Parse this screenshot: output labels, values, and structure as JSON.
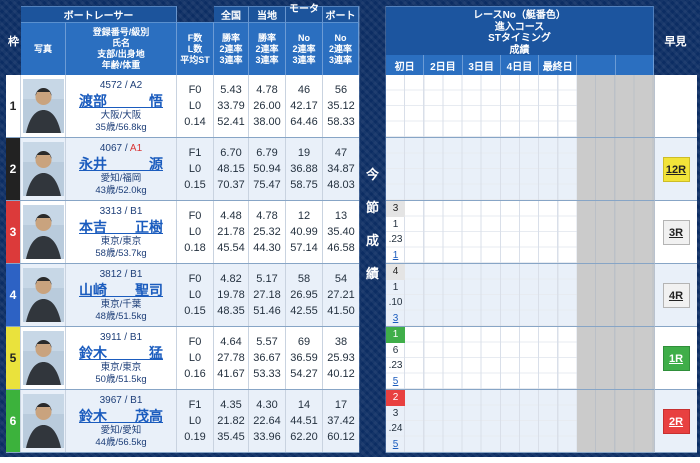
{
  "header": {
    "waku": "枠",
    "boat_racer": "ボートレーサー",
    "photo": "写真",
    "profile_lines": [
      "登録番号/級別",
      "氏名",
      "支部/出身地",
      "年齢/体重"
    ],
    "fl_lines": [
      "F数",
      "L数",
      "平均ST"
    ],
    "stat_groups": [
      "全国",
      "当地",
      "モーター",
      "ボート"
    ],
    "rate_lines": [
      "勝率",
      "2連率",
      "3連率"
    ],
    "no_lines": [
      "No",
      "2連率",
      "3連率"
    ],
    "right_title_lines": [
      "レースNo（艇番色）",
      "進入コース",
      "STタイミング",
      "成績"
    ],
    "days": [
      "初日",
      "2日目",
      "3日目",
      "4日目",
      "最終日",
      "",
      ""
    ],
    "hayami": "早見",
    "vertical_label": [
      "今",
      "節",
      "成",
      "績"
    ]
  },
  "colors": {
    "frame_navy": "#0c2d63",
    "header_dark_blue": "#1c549c",
    "header_light_blue": "#2b6fc0",
    "row_alt": "#e9f0f9",
    "link_blue": "#1b5cbe"
  },
  "racers": [
    {
      "waku": "1",
      "waku_bg": "#ffffff",
      "waku_fg": "#222222",
      "reg": "4572",
      "class": "A2",
      "class_color": "#1d3e78",
      "name": "渡部　　　悟",
      "branch": "大阪/大阪",
      "age_weight": "35歳/56.8kg",
      "f": "F0",
      "l": "L0",
      "st": "0.14",
      "zenkoku": [
        "5.43",
        "33.79",
        "52.41"
      ],
      "touchi": [
        "4.78",
        "26.00",
        "38.00"
      ],
      "motor": [
        "46",
        "42.17",
        "64.46"
      ],
      "boat": [
        "56",
        "35.12",
        "58.33"
      ],
      "day1": null,
      "hayami": null
    },
    {
      "waku": "2",
      "waku_bg": "#222222",
      "waku_fg": "#ffffff",
      "reg": "4067",
      "class": "A1",
      "class_color": "#d93535",
      "name": "永井　　　源",
      "branch": "愛知/福岡",
      "age_weight": "43歳/52.0kg",
      "f": "F1",
      "l": "L0",
      "st": "0.15",
      "zenkoku": [
        "6.70",
        "48.15",
        "70.37"
      ],
      "touchi": [
        "6.79",
        "50.94",
        "75.47"
      ],
      "motor": [
        "19",
        "36.88",
        "58.75"
      ],
      "boat": [
        "47",
        "34.87",
        "48.03"
      ],
      "day1": null,
      "hayami": {
        "label": "12R",
        "bg": "#f2e339",
        "fg": "#222222",
        "border": "#cdbd27"
      }
    },
    {
      "waku": "3",
      "waku_bg": "#dc3a3a",
      "waku_fg": "#ffffff",
      "reg": "3313",
      "class": "B1",
      "class_color": "#1d3e78",
      "name": "本吉　　正樹",
      "branch": "東京/東京",
      "age_weight": "58歳/53.7kg",
      "f": "F0",
      "l": "L0",
      "st": "0.18",
      "zenkoku": [
        "4.48",
        "21.78",
        "45.54"
      ],
      "touchi": [
        "4.78",
        "25.32",
        "44.30"
      ],
      "motor": [
        "12",
        "40.99",
        "57.14"
      ],
      "boat": [
        "13",
        "35.40",
        "46.58"
      ],
      "day1": {
        "race": "3",
        "race_bg": "#e4e4e4",
        "race_fg": "#222222",
        "course": "1",
        "st": ".23",
        "result": "1"
      },
      "hayami": {
        "label": "3R",
        "bg": "#f1f1f1",
        "fg": "#222222",
        "border": "#b4b4b4"
      }
    },
    {
      "waku": "4",
      "waku_bg": "#2d62c4",
      "waku_fg": "#ffffff",
      "reg": "3812",
      "class": "B1",
      "class_color": "#1d3e78",
      "name": "山崎　　聖司",
      "branch": "東京/千葉",
      "age_weight": "48歳/51.5kg",
      "f": "F0",
      "l": "L0",
      "st": "0.15",
      "zenkoku": [
        "4.82",
        "19.78",
        "48.35"
      ],
      "touchi": [
        "5.17",
        "27.18",
        "51.46"
      ],
      "motor": [
        "58",
        "26.95",
        "42.55"
      ],
      "boat": [
        "54",
        "27.21",
        "41.50"
      ],
      "day1": {
        "race": "4",
        "race_bg": "#e4e4e4",
        "race_fg": "#222222",
        "course": "1",
        "st": ".10",
        "result": "3"
      },
      "hayami": {
        "label": "4R",
        "bg": "#f1f1f1",
        "fg": "#222222",
        "border": "#b4b4b4"
      }
    },
    {
      "waku": "5",
      "waku_bg": "#eae23c",
      "waku_fg": "#222222",
      "reg": "3911",
      "class": "B1",
      "class_color": "#1d3e78",
      "name": "鈴木　　　猛",
      "branch": "東京/東京",
      "age_weight": "50歳/51.5kg",
      "f": "F0",
      "l": "L0",
      "st": "0.16",
      "zenkoku": [
        "4.64",
        "27.78",
        "41.67"
      ],
      "touchi": [
        "5.57",
        "36.67",
        "53.33"
      ],
      "motor": [
        "69",
        "36.59",
        "54.27"
      ],
      "boat": [
        "38",
        "25.93",
        "40.12"
      ],
      "day1": {
        "race": "1",
        "race_bg": "#3fae49",
        "race_fg": "#ffffff",
        "course": "6",
        "st": ".23",
        "result": "5"
      },
      "hayami": {
        "label": "1R",
        "bg": "#3fae49",
        "fg": "#ffffff",
        "border": "#2f8f3a"
      }
    },
    {
      "waku": "6",
      "waku_bg": "#3cb23c",
      "waku_fg": "#ffffff",
      "reg": "3967",
      "class": "B1",
      "class_color": "#1d3e78",
      "name": "鈴木　　茂高",
      "branch": "愛知/愛知",
      "age_weight": "44歳/56.5kg",
      "f": "F1",
      "l": "L0",
      "st": "0.19",
      "zenkoku": [
        "4.35",
        "21.82",
        "35.45"
      ],
      "touchi": [
        "4.30",
        "22.64",
        "33.96"
      ],
      "motor": [
        "14",
        "44.51",
        "62.20"
      ],
      "boat": [
        "17",
        "37.42",
        "60.12"
      ],
      "day1": {
        "race": "2",
        "race_bg": "#e84040",
        "race_fg": "#ffffff",
        "course": "3",
        "st": ".24",
        "result": "5"
      },
      "hayami": {
        "label": "2R",
        "bg": "#e84040",
        "fg": "#ffffff",
        "border": "#c73030"
      }
    }
  ]
}
